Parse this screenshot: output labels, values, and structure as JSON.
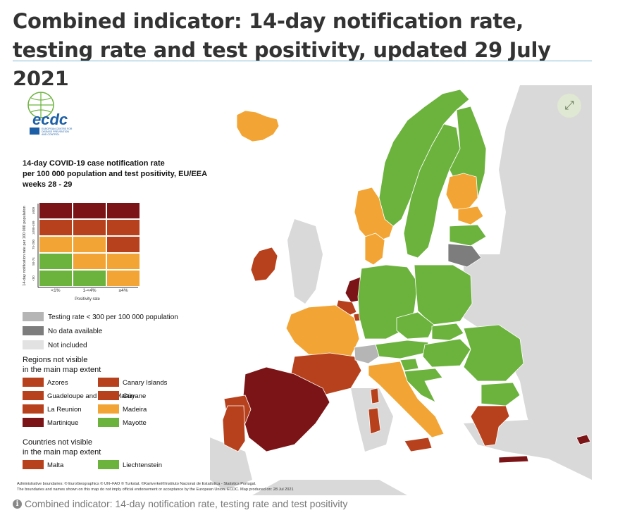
{
  "title": "Combined indicator: 14-day notification rate, testing rate and test positivity, updated 29 July 2021",
  "caption": "Combined indicator: 14-day notification rate, testing rate and test positivity",
  "icons": {
    "expand": "expand-icon",
    "info": "info-icon"
  },
  "logo": {
    "text": "ecdc",
    "sub": [
      "EUROPEAN CENTRE FOR",
      "DISEASE PREVENTION",
      "AND CONTROL"
    ]
  },
  "legend": {
    "heading": [
      "14-day COVID-19 case notification rate",
      "per 100 000 population and test positivity, EU/EEA",
      "weeks 28 - 29"
    ],
    "y_axis_label": "14-day notification rate per 100 000 population",
    "y_ticks": [
      "≥500",
      "≥200-499",
      "75-200",
      "50-74",
      "<50"
    ],
    "x_axis_label": "Positivity rate",
    "x_ticks": [
      "<1%",
      "1-<4%",
      "≥4%"
    ],
    "matrix": [
      [
        "dark_red",
        "dark_red",
        "dark_red"
      ],
      [
        "red",
        "red",
        "red"
      ],
      [
        "orange",
        "orange",
        "red"
      ],
      [
        "green",
        "orange",
        "orange"
      ],
      [
        "green",
        "green",
        "orange"
      ]
    ],
    "greys": [
      {
        "key": "light_grey",
        "label": "Testing rate < 300 per 100 000 population"
      },
      {
        "key": "dark_grey",
        "label": "No data available"
      },
      {
        "key": "white_grey",
        "label": "Not included"
      }
    ],
    "regions_heading": [
      "Regions not visible",
      "in the main map extent"
    ],
    "regions": [
      {
        "label": "Azores",
        "color": "red"
      },
      {
        "label": "Canary Islands",
        "color": "red"
      },
      {
        "label": "Guadeloupe and Saint Martin",
        "color": "red"
      },
      {
        "label": "Guyane",
        "color": "red"
      },
      {
        "label": "La Reunion",
        "color": "red"
      },
      {
        "label": "Madeira",
        "color": "orange"
      },
      {
        "label": "Martinique",
        "color": "dark_red"
      },
      {
        "label": "Mayotte",
        "color": "green"
      }
    ],
    "countries_heading": [
      "Countries not visible",
      "in the main map extent"
    ],
    "countries": [
      {
        "label": "Malta",
        "color": "red"
      },
      {
        "label": "Liechtenstein",
        "color": "green"
      }
    ]
  },
  "colors": {
    "dark_red": "#7b1416",
    "red": "#b7411c",
    "orange": "#f2a534",
    "green": "#6cb33e",
    "light_grey": "#b5b5b5",
    "dark_grey": "#7d7d7d",
    "white_grey": "#e2e2e2",
    "sea": "#ffffff",
    "non_eu": "#d9d9d9",
    "logo_blue": "#1d5fa6",
    "logo_green": "#6cb33e"
  },
  "map": {
    "regions": [
      {
        "name": "iceland",
        "status": "orange"
      },
      {
        "name": "ireland",
        "status": "red"
      },
      {
        "name": "norway",
        "status": "green"
      },
      {
        "name": "norway-south",
        "status": "orange"
      },
      {
        "name": "sweden",
        "status": "green"
      },
      {
        "name": "finland",
        "status": "green"
      },
      {
        "name": "finland-south",
        "status": "orange"
      },
      {
        "name": "estonia",
        "status": "orange"
      },
      {
        "name": "latvia",
        "status": "green"
      },
      {
        "name": "lithuania",
        "status": "dark_grey"
      },
      {
        "name": "denmark",
        "status": "orange"
      },
      {
        "name": "netherlands",
        "status": "dark_red"
      },
      {
        "name": "belgium",
        "status": "red"
      },
      {
        "name": "luxembourg",
        "status": "red"
      },
      {
        "name": "france-north",
        "status": "orange"
      },
      {
        "name": "france-south",
        "status": "red"
      },
      {
        "name": "germany",
        "status": "green"
      },
      {
        "name": "poland",
        "status": "green"
      },
      {
        "name": "czechia",
        "status": "green"
      },
      {
        "name": "austria",
        "status": "green"
      },
      {
        "name": "switzerland",
        "status": "light_grey"
      },
      {
        "name": "slovakia",
        "status": "green"
      },
      {
        "name": "hungary",
        "status": "green"
      },
      {
        "name": "romania",
        "status": "green"
      },
      {
        "name": "bulgaria",
        "status": "green"
      },
      {
        "name": "slovenia",
        "status": "green"
      },
      {
        "name": "croatia",
        "status": "green"
      },
      {
        "name": "italy",
        "status": "orange"
      },
      {
        "name": "sicily",
        "status": "red"
      },
      {
        "name": "sardinia",
        "status": "red"
      },
      {
        "name": "corsica",
        "status": "red"
      },
      {
        "name": "spain",
        "status": "dark_red"
      },
      {
        "name": "spain-north",
        "status": "red"
      },
      {
        "name": "portugal",
        "status": "red"
      },
      {
        "name": "greece",
        "status": "red"
      },
      {
        "name": "crete",
        "status": "dark_red"
      },
      {
        "name": "cyprus",
        "status": "dark_red"
      }
    ]
  },
  "footer_lines": [
    "Administrative boundaries: © EuroGeographics © UN–FAO © Turkstat. ©Kartverket©Instituto Nacional de Estatística - Statistics Portugal.",
    "The boundaries and names shown on this map do not imply official endorsement or acceptance by the European Union. ECDC. Map produced on: 28 Jul 2021"
  ]
}
